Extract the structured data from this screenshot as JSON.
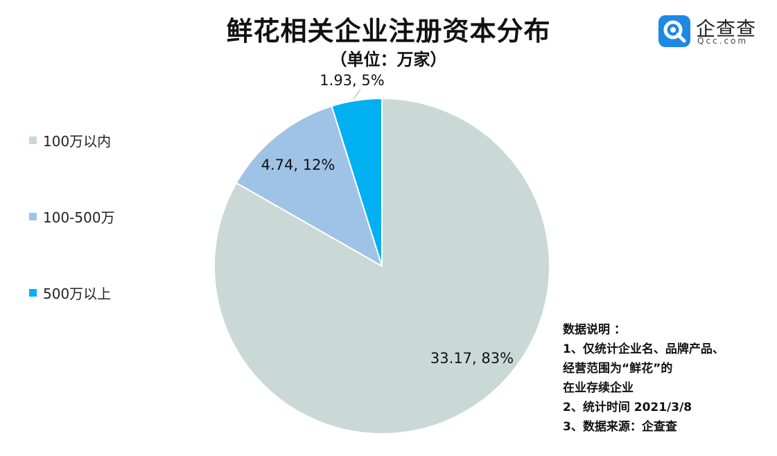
{
  "title": "鲜花相关企业注册资本分布",
  "subtitle": "（单位：万家）",
  "logo": {
    "name": "企查查",
    "domain": "Qcc.com",
    "color": "#1e88e5"
  },
  "chart_data": {
    "type": "pie",
    "title": "鲜花相关企业注册资本分布",
    "unit": "万家",
    "start": "12 o'clock, clockwise",
    "legend_position": "left",
    "slices": [
      {
        "category": "100万以内",
        "value": 33.17,
        "percent": 83,
        "label": "33.17, 83%",
        "color": "#cad9d5"
      },
      {
        "category": "100-500万",
        "value": 4.74,
        "percent": 12,
        "label": "4.74, 12%",
        "color": "#9fc3e6"
      },
      {
        "category": "500万以上",
        "value": 1.93,
        "percent": 5,
        "label": "1.93, 5%",
        "color": "#00b0f0"
      }
    ]
  },
  "notes": [
    "数据说明 ：",
    "1、仅统计企业名、品牌产品、",
    "经营范围为“鲜花”的",
    "在业存续企业",
    "2、统计时间 2021/3/8",
    "3、数据来源：企查查"
  ]
}
